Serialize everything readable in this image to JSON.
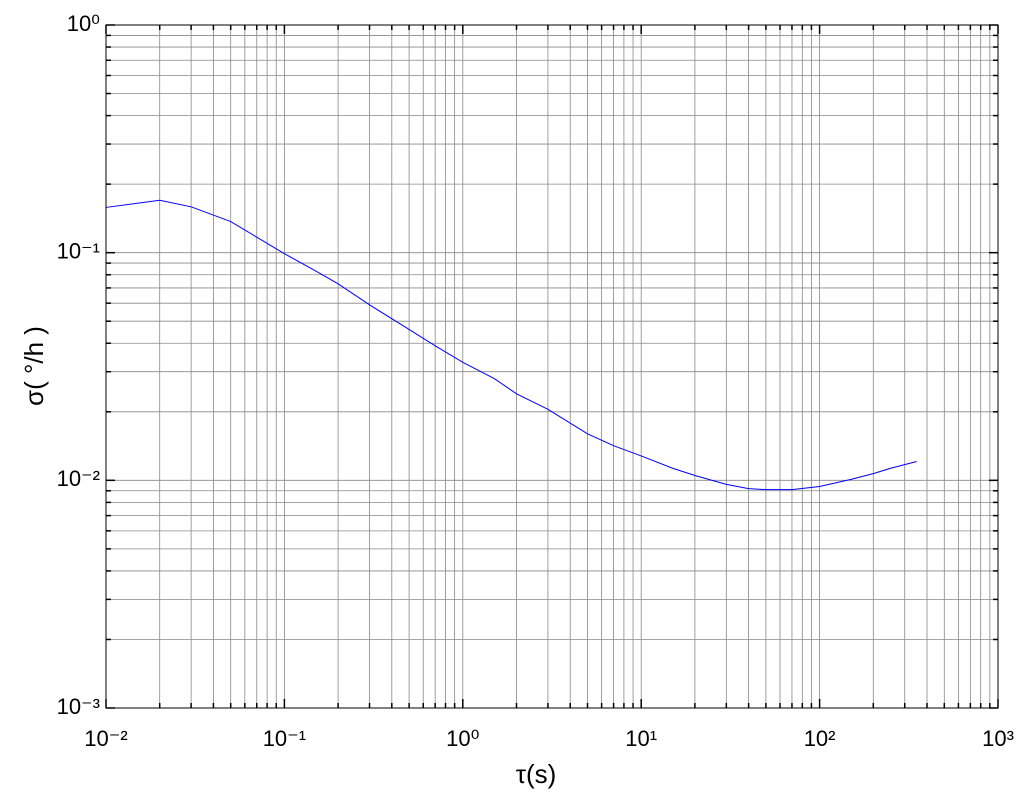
{
  "chart_data": {
    "type": "line",
    "log_x": true,
    "log_y": true,
    "grid": true,
    "xlabel": "τ(s)",
    "ylabel": "σ( °/h )",
    "x": [
      0.01,
      0.02,
      0.03,
      0.05,
      0.07,
      0.1,
      0.15,
      0.2,
      0.3,
      0.5,
      0.7,
      1,
      1.5,
      2,
      3,
      5,
      7,
      10,
      15,
      20,
      30,
      40,
      50,
      70,
      100,
      150,
      200,
      250,
      350
    ],
    "series": [
      {
        "name": "σ",
        "color": "#0000ff",
        "values": [
          0.158,
          0.17,
          0.159,
          0.137,
          0.117,
          0.099,
          0.083,
          0.073,
          0.059,
          0.046,
          0.039,
          0.033,
          0.028,
          0.024,
          0.0205,
          0.016,
          0.0142,
          0.0128,
          0.0113,
          0.0105,
          0.0096,
          0.0092,
          0.0091,
          0.0091,
          0.0094,
          0.0101,
          0.0107,
          0.0113,
          0.0121
        ]
      }
    ],
    "xlim": [
      0.01,
      1000
    ],
    "ylim": [
      0.001,
      1
    ],
    "xticks": [
      {
        "value": 0.01,
        "label": "10⁻²"
      },
      {
        "value": 0.1,
        "label": "10⁻¹"
      },
      {
        "value": 1,
        "label": "10⁰"
      },
      {
        "value": 10,
        "label": "10¹"
      },
      {
        "value": 100,
        "label": "10²"
      },
      {
        "value": 1000,
        "label": "10³"
      }
    ],
    "yticks": [
      {
        "value": 0.001,
        "label": "10⁻³"
      },
      {
        "value": 0.01,
        "label": "10⁻²"
      },
      {
        "value": 0.1,
        "label": "10⁻¹"
      },
      {
        "value": 1,
        "label": "10⁰"
      }
    ],
    "xminorticks": [
      0.02,
      0.03,
      0.04,
      0.05,
      0.06,
      0.07,
      0.08,
      0.09,
      0.2,
      0.3,
      0.4,
      0.5,
      0.6,
      0.7,
      0.8,
      0.9,
      2,
      3,
      4,
      5,
      6,
      7,
      8,
      9,
      20,
      30,
      40,
      50,
      60,
      70,
      80,
      90,
      200,
      300,
      400,
      500,
      600,
      700,
      800,
      900
    ],
    "yminorticks": [
      0.002,
      0.003,
      0.004,
      0.005,
      0.006,
      0.007,
      0.008,
      0.009,
      0.02,
      0.03,
      0.04,
      0.05,
      0.06,
      0.07,
      0.08,
      0.09,
      0.2,
      0.3,
      0.4,
      0.5,
      0.6,
      0.7,
      0.8,
      0.9
    ]
  }
}
